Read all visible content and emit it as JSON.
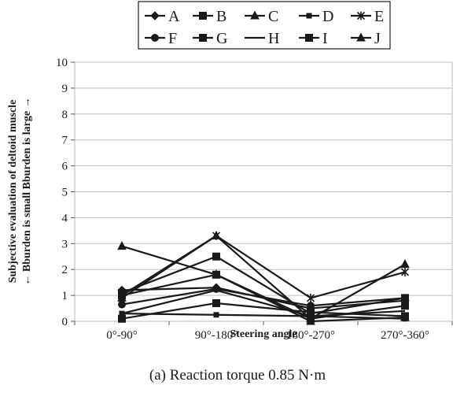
{
  "caption": "(a) Reaction torque 0.85 N·m",
  "chart_data": {
    "type": "line",
    "title": "",
    "xlabel": "Steering angle",
    "ylabel_lines": [
      "Subjective evaluation of deltoid muscle",
      "← Bburden is small Bburden is large →"
    ],
    "categories": [
      "0°-90°",
      "90°-180°",
      "180°-270°",
      "270°-360°"
    ],
    "ylim": [
      0,
      10
    ],
    "yticks": [
      "0",
      "1",
      "2",
      "3",
      "4",
      "5",
      "6",
      "7",
      "8",
      "9",
      "10"
    ],
    "grid": true,
    "legend_position": "top",
    "series": [
      {
        "name": "A",
        "marker": "diamond",
        "values": [
          1.2,
          1.3,
          0.5,
          0.8
        ]
      },
      {
        "name": "B",
        "marker": "square",
        "values": [
          1.1,
          2.5,
          0.3,
          0.9
        ]
      },
      {
        "name": "C",
        "marker": "triangle",
        "values": [
          0.9,
          3.3,
          0.1,
          2.2
        ]
      },
      {
        "name": "D",
        "marker": "square-small",
        "values": [
          0.3,
          0.25,
          0.2,
          0.1
        ]
      },
      {
        "name": "E",
        "marker": "star",
        "values": [
          1.0,
          3.3,
          0.9,
          1.9
        ]
      },
      {
        "name": "F",
        "marker": "circle",
        "values": [
          0.65,
          1.25,
          0.6,
          0.9
        ]
      },
      {
        "name": "G",
        "marker": "square",
        "values": [
          1.0,
          1.8,
          0.1,
          0.6
        ]
      },
      {
        "name": "H",
        "marker": "none",
        "values": [
          0.3,
          1.2,
          0.2,
          0.4
        ]
      },
      {
        "name": "I",
        "marker": "square",
        "values": [
          0.1,
          0.7,
          0.35,
          0.2
        ]
      },
      {
        "name": "J",
        "marker": "triangle",
        "values": [
          2.9,
          1.8,
          0.0,
          0.15
        ]
      }
    ]
  }
}
